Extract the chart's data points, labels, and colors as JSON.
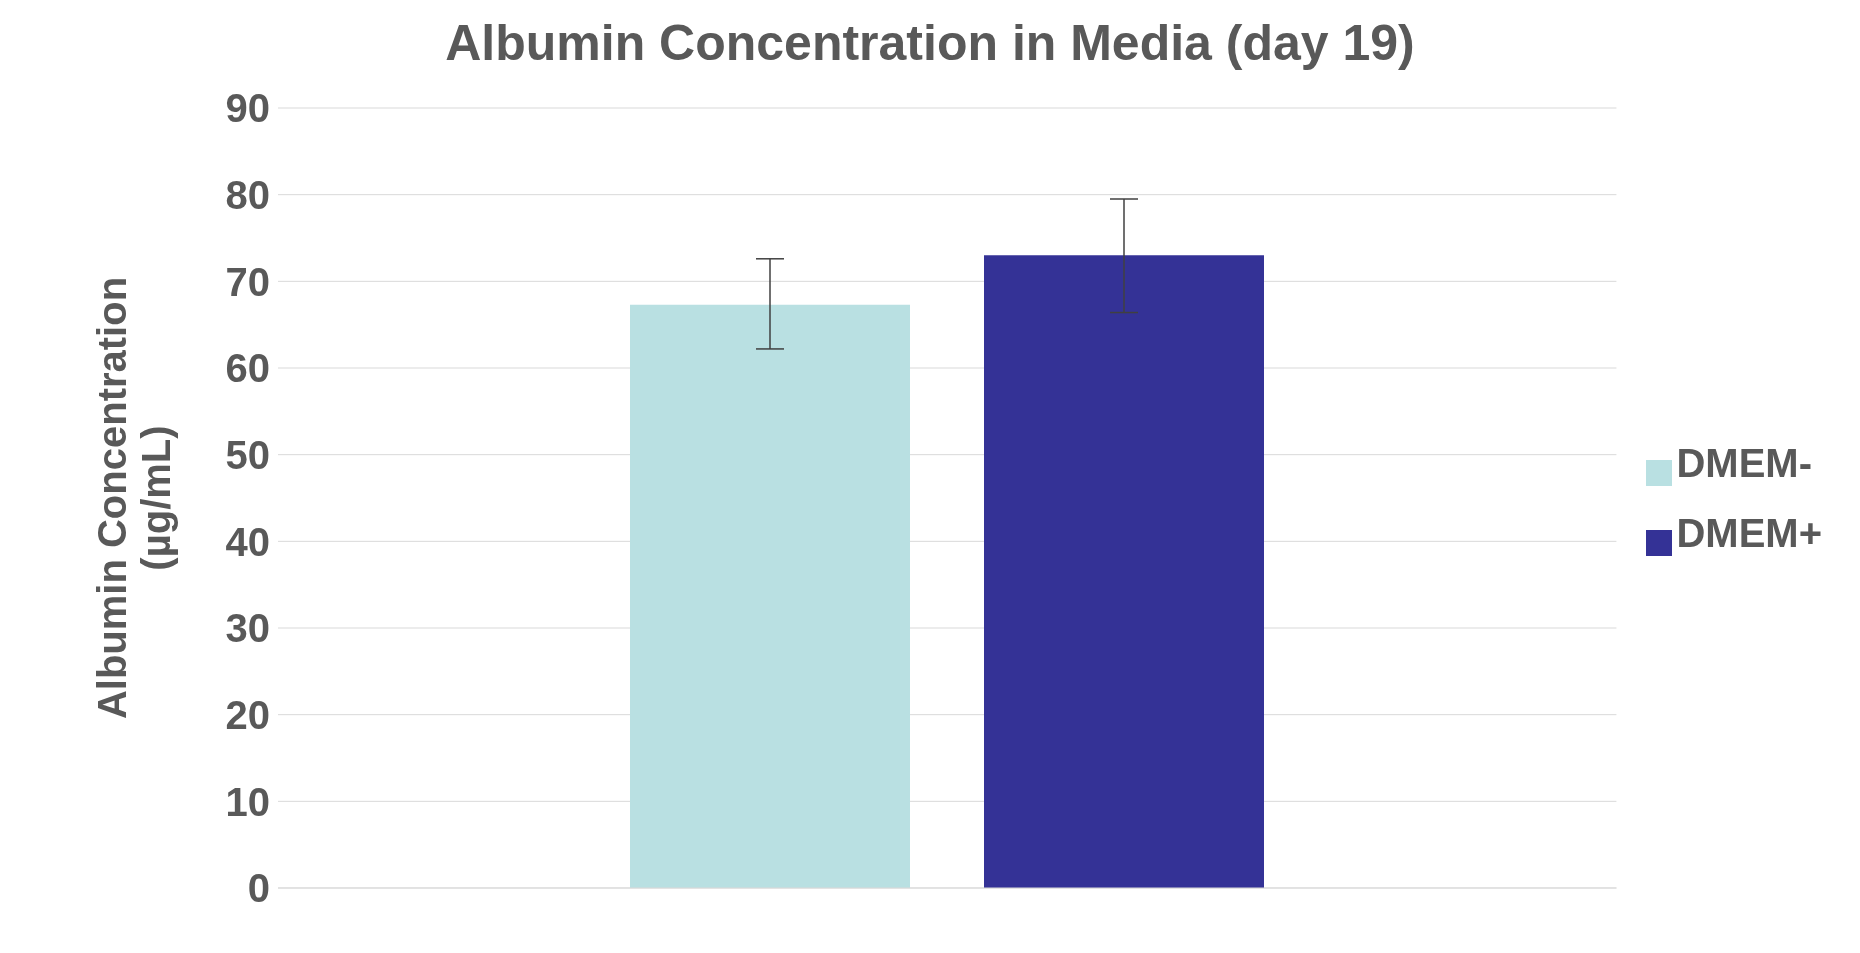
{
  "chart_data": {
    "type": "bar",
    "title": "Albumin Concentration in Media (day 19)",
    "ylabel": "Albumin Concentration\n(µg/mL)",
    "categories": [
      null
    ],
    "series": [
      {
        "name": "DMEM-",
        "color": "#b9e0e2",
        "values": [
          67.3
        ],
        "errors": [
          [
            62.2,
            72.6
          ]
        ]
      },
      {
        "name": "DMEM+",
        "color": "#343296",
        "values": [
          73.0
        ],
        "errors": [
          [
            66.4,
            79.5
          ]
        ]
      }
    ],
    "ylim": [
      0,
      90
    ],
    "yticks": [
      0,
      10,
      20,
      30,
      40,
      50,
      60,
      70,
      80,
      90
    ],
    "grid": "y",
    "legend": "right"
  }
}
